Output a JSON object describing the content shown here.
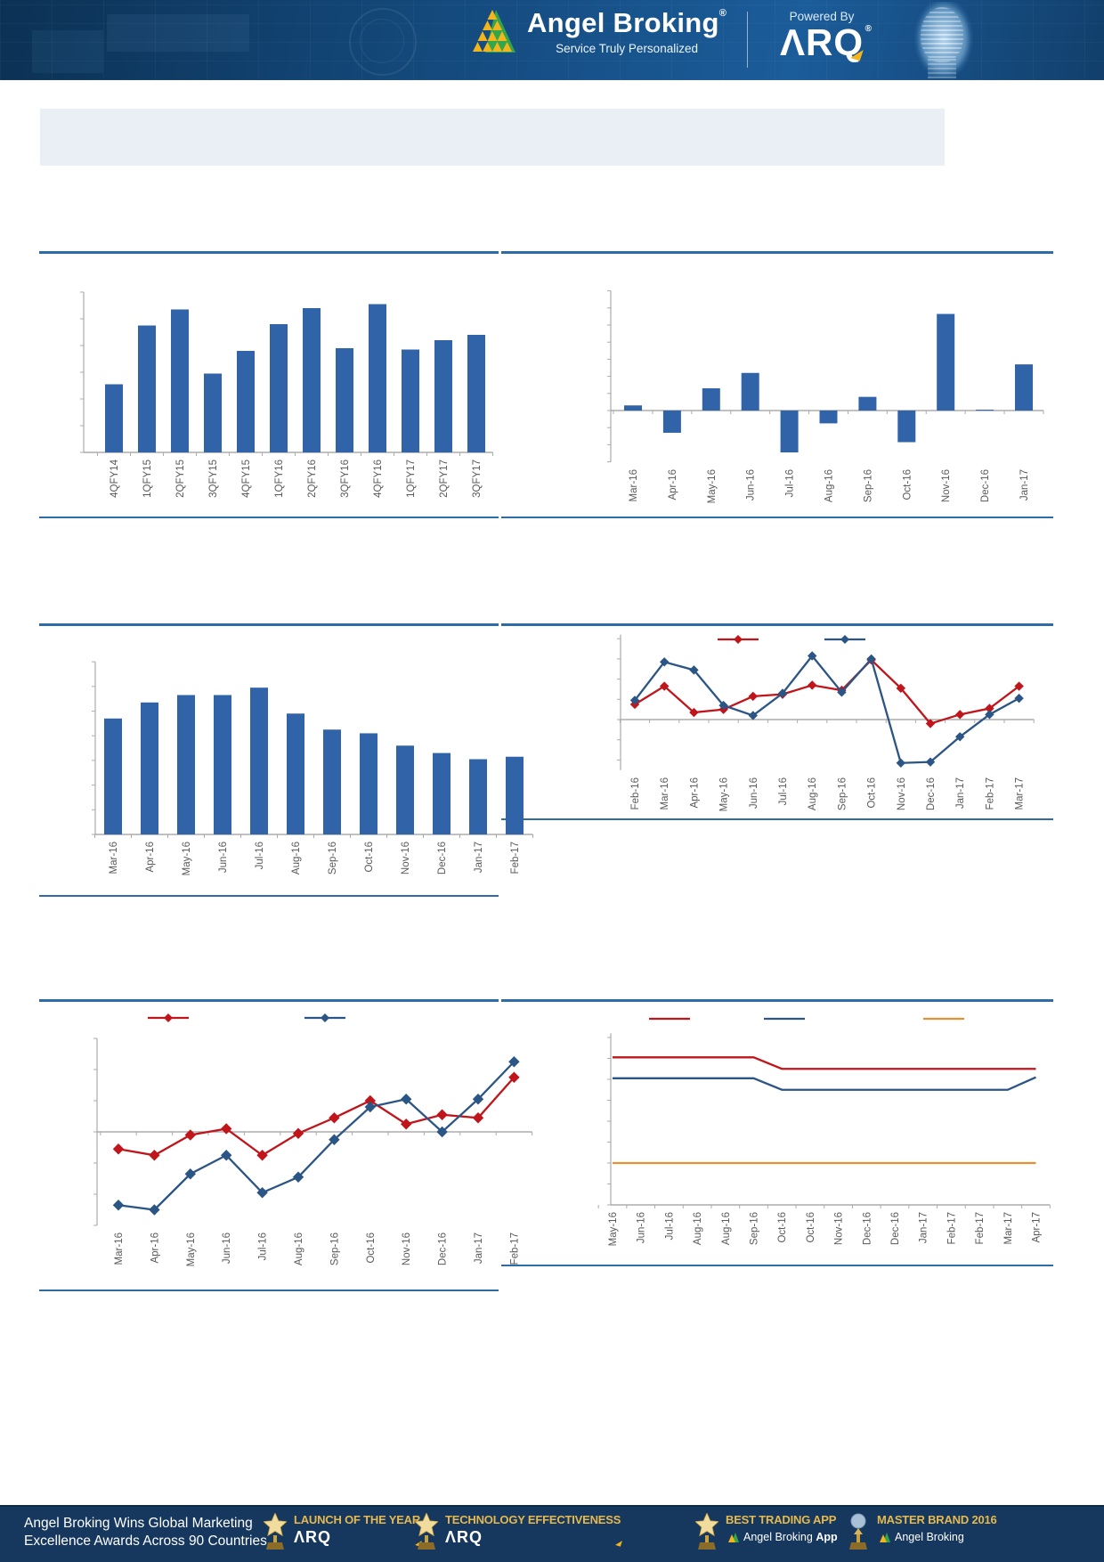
{
  "header": {
    "brand": "Angel Broking",
    "brand_reg": "®",
    "tagline": "Service Truly Personalized",
    "powered_by": "Powered By",
    "arq_logo": "ΛRQ",
    "arq_reg": "®"
  },
  "banner": {
    "text": ""
  },
  "colors": {
    "bar_blue": "#3163A9",
    "line_red": "#C0151B",
    "line_navy": "#2B5585",
    "line_orange": "#E78F33",
    "rule_blue": "#2E6CA8",
    "header_bg": "#144A7D",
    "footer_bg": "#16375E",
    "footer_gold": "#E5B94E"
  },
  "chart_data": [
    {
      "id": "quarterly-bars",
      "type": "bar",
      "title": "",
      "xlabel": "",
      "ylabel": "",
      "categories": [
        "4QFY14",
        "1QFY15",
        "2QFY15",
        "3QFY15",
        "4QFY15",
        "1QFY16",
        "2QFY16",
        "3QFY16",
        "4QFY16",
        "1QFY17",
        "2QFY17",
        "3QFY17"
      ],
      "values": [
        2.55,
        4.75,
        5.35,
        2.95,
        3.8,
        4.8,
        5.4,
        3.9,
        5.55,
        3.85,
        4.2,
        4.4
      ],
      "ylim": [
        0,
        6
      ],
      "bar_color": "#3163A9",
      "grid": false,
      "legend": "none"
    },
    {
      "id": "monthly-net-bars",
      "type": "bar",
      "title": "",
      "xlabel": "",
      "ylabel": "",
      "categories": [
        "Mar-16",
        "Apr-16",
        "May-16",
        "Jun-16",
        "Jul-16",
        "Aug-16",
        "Sep-16",
        "Oct-16",
        "Nov-16",
        "Dec-16",
        "Jan-17"
      ],
      "values": [
        0.3,
        -1.3,
        1.3,
        2.2,
        -2.45,
        -0.75,
        0.8,
        -1.85,
        5.65,
        0.05,
        2.7
      ],
      "ylim": [
        -3,
        7
      ],
      "bar_color": "#3163A9",
      "grid": false,
      "legend": "none"
    },
    {
      "id": "monthly-bars-declining",
      "type": "bar",
      "title": "",
      "xlabel": "",
      "ylabel": "",
      "categories": [
        "Mar-16",
        "Apr-16",
        "May-16",
        "Jun-16",
        "Jul-16",
        "Aug-16",
        "Sep-16",
        "Oct-16",
        "Nov-16",
        "Dec-16",
        "Jan-17",
        "Feb-17"
      ],
      "values": [
        4.7,
        5.35,
        5.65,
        5.65,
        5.95,
        4.9,
        4.25,
        4.1,
        3.6,
        3.3,
        3.05,
        3.15
      ],
      "ylim": [
        0,
        7
      ],
      "bar_color": "#3163A9",
      "grid": false,
      "legend": "none"
    },
    {
      "id": "dual-line-monthly",
      "type": "line",
      "title": "",
      "xlabel": "",
      "ylabel": "",
      "categories": [
        "Feb-16",
        "Mar-16",
        "Apr-16",
        "May-16",
        "Jun-16",
        "Jul-16",
        "Aug-16",
        "Sep-16",
        "Oct-16",
        "Nov-16",
        "Dec-16",
        "Jan-17",
        "Feb-17",
        "Mar-17"
      ],
      "series": [
        {
          "name": "",
          "color": "#C0151B",
          "marker": "diamond",
          "values": [
            0.75,
            1.65,
            0.35,
            0.5,
            1.15,
            1.25,
            1.7,
            1.45,
            2.95,
            1.55,
            -0.2,
            0.25,
            0.55,
            1.65
          ]
        },
        {
          "name": "",
          "color": "#2B5585",
          "marker": "diamond",
          "values": [
            0.95,
            2.85,
            2.45,
            0.7,
            0.2,
            1.3,
            3.15,
            1.35,
            3.0,
            -2.15,
            -2.1,
            -0.85,
            0.25,
            1.05
          ]
        }
      ],
      "ylim": [
        -2.5,
        4.2
      ],
      "grid": false,
      "legend": "top"
    },
    {
      "id": "dual-line-trend",
      "type": "line",
      "title": "",
      "xlabel": "",
      "ylabel": "",
      "categories": [
        "Mar-16",
        "Apr-16",
        "May-16",
        "Jun-16",
        "Jul-16",
        "Aug-16",
        "Sep-16",
        "Oct-16",
        "Nov-16",
        "Dec-16",
        "Jan-17",
        "Feb-17"
      ],
      "series": [
        {
          "name": "",
          "color": "#C0151B",
          "marker": "diamond",
          "values": [
            -0.55,
            -0.75,
            -0.1,
            0.1,
            -0.75,
            -0.05,
            0.45,
            1.0,
            0.25,
            0.55,
            0.45,
            1.75
          ]
        },
        {
          "name": "",
          "color": "#2B5585",
          "marker": "diamond",
          "values": [
            -2.35,
            -2.5,
            -1.35,
            -0.75,
            -1.95,
            -1.45,
            -0.25,
            0.8,
            1.05,
            0.0,
            1.05,
            2.25
          ]
        }
      ],
      "ylim": [
        -3,
        3
      ],
      "grid": false,
      "legend": "top"
    },
    {
      "id": "rates-step-lines",
      "type": "line",
      "title": "",
      "xlabel": "",
      "ylabel": "",
      "categories": [
        "May-16",
        "Jun-16",
        "Jul-16",
        "Aug-16",
        "Aug-16",
        "Sep-16",
        "Oct-16",
        "Oct-16",
        "Nov-16",
        "Dec-16",
        "Dec-16",
        "Jan-17",
        "Feb-17",
        "Feb-17",
        "Mar-17",
        "Apr-17"
      ],
      "series": [
        {
          "name": "",
          "color": "#C0151B",
          "marker": "none",
          "values": [
            7.05,
            7.05,
            7.05,
            7.05,
            7.05,
            7.05,
            6.5,
            6.5,
            6.5,
            6.5,
            6.5,
            6.5,
            6.5,
            6.5,
            6.5,
            6.5
          ]
        },
        {
          "name": "",
          "color": "#2B5585",
          "marker": "none",
          "values": [
            6.05,
            6.05,
            6.05,
            6.05,
            6.05,
            6.05,
            5.5,
            5.5,
            5.5,
            5.5,
            5.5,
            5.5,
            5.5,
            5.5,
            5.5,
            6.1
          ]
        },
        {
          "name": "",
          "color": "#E78F33",
          "marker": "none",
          "values": [
            2.0,
            2.0,
            2.0,
            2.0,
            2.0,
            2.0,
            2.0,
            2.0,
            2.0,
            2.0,
            2.0,
            2.0,
            2.0,
            2.0,
            2.0,
            2.0
          ]
        }
      ],
      "ylim": [
        0,
        8.2
      ],
      "grid": false,
      "legend": "top"
    }
  ],
  "footer": {
    "headline_line1": "Angel Broking Wins Global Marketing",
    "headline_line2": "Excellence Awards Across 90 Countries",
    "awards": [
      {
        "icon": "star-trophy-icon",
        "title": "LAUNCH OF THE YEAR",
        "sub": "ΛRQ",
        "sub_bold": ""
      },
      {
        "icon": "star-trophy-icon",
        "title": "TECHNOLOGY EFFECTIVENESS",
        "sub": "ΛRQ",
        "sub_bold": ""
      },
      {
        "icon": "star-trophy-icon",
        "title": "BEST TRADING APP",
        "sub": "Angel Broking",
        "sub_bold": "App"
      },
      {
        "icon": "globe-trophy-icon",
        "title": "MASTER BRAND 2016",
        "sub": "Angel Broking",
        "sub_bold": ""
      }
    ]
  }
}
